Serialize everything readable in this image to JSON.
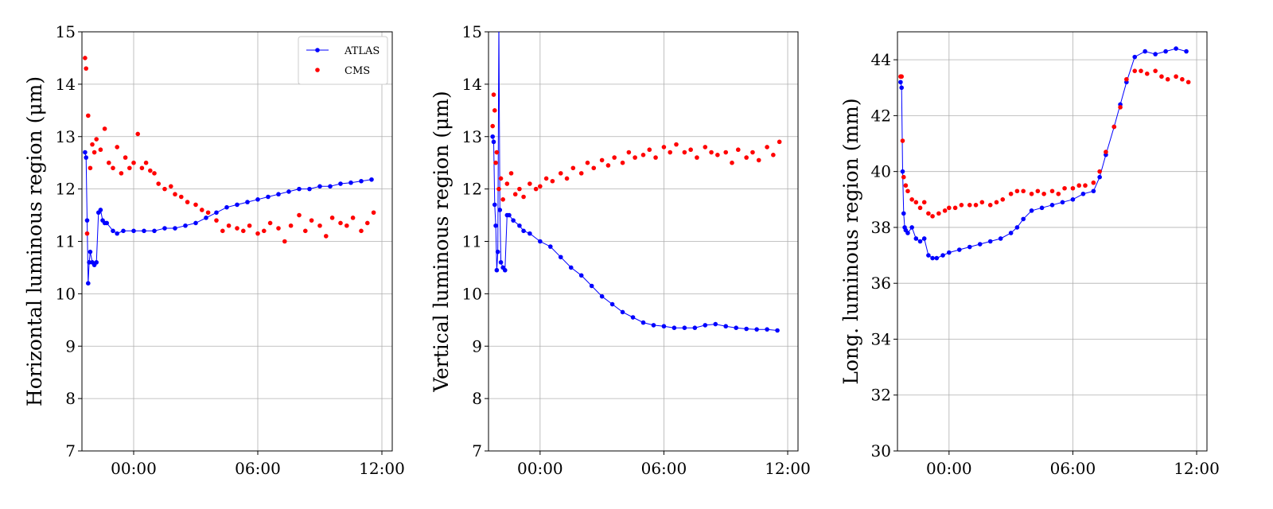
{
  "chart_data": [
    {
      "type": "scatter",
      "title": "",
      "xlabel": "",
      "ylabel": "Horizontal luminous region (μm)",
      "x_unit": "hours",
      "xlim": [
        -2.5,
        12.5
      ],
      "ylim": [
        7,
        15
      ],
      "x_ticks": [
        0,
        6,
        12
      ],
      "x_tick_labels": [
        "00:00",
        "06:00",
        "12:00"
      ],
      "y_ticks": [
        7,
        8,
        9,
        10,
        11,
        12,
        13,
        14,
        15
      ],
      "y_tick_labels": [
        "7",
        "8",
        "9",
        "10",
        "11",
        "12",
        "13",
        "14",
        "15"
      ],
      "grid": true,
      "legend": {
        "position": "top-right",
        "entries": [
          "ATLAS",
          "CMS"
        ]
      },
      "series": [
        {
          "name": "ATLAS",
          "style": "line-marker",
          "color": "#0000ff",
          "x": [
            -2.35,
            -2.3,
            -2.25,
            -2.2,
            -2.15,
            -2.1,
            -2.0,
            -1.9,
            -1.8,
            -1.7,
            -1.6,
            -1.5,
            -1.4,
            -1.3,
            -1.0,
            -0.8,
            -0.5,
            0,
            0.5,
            1.0,
            1.5,
            2.0,
            2.5,
            3.0,
            3.5,
            4.0,
            4.5,
            5.0,
            5.5,
            6.0,
            6.5,
            7.0,
            7.5,
            8.0,
            8.5,
            9.0,
            9.5,
            10.0,
            10.5,
            11.0,
            11.5
          ],
          "y": [
            12.7,
            12.6,
            11.4,
            10.2,
            10.6,
            10.8,
            10.6,
            10.55,
            10.6,
            11.55,
            11.6,
            11.4,
            11.35,
            11.35,
            11.2,
            11.15,
            11.2,
            11.2,
            11.2,
            11.2,
            11.25,
            11.25,
            11.3,
            11.35,
            11.45,
            11.55,
            11.65,
            11.7,
            11.75,
            11.8,
            11.85,
            11.9,
            11.95,
            12.0,
            12.0,
            12.05,
            12.05,
            12.1,
            12.12,
            12.15,
            12.18
          ]
        },
        {
          "name": "CMS",
          "style": "marker",
          "color": "#ff0000",
          "x": [
            -2.35,
            -2.3,
            -2.25,
            -2.2,
            -2.1,
            -2.0,
            -1.9,
            -1.8,
            -1.6,
            -1.4,
            -1.2,
            -1.0,
            -0.8,
            -0.6,
            -0.4,
            -0.2,
            0,
            0.2,
            0.4,
            0.6,
            0.8,
            1.0,
            1.2,
            1.5,
            1.8,
            2.0,
            2.3,
            2.6,
            3.0,
            3.3,
            3.6,
            4.0,
            4.3,
            4.6,
            5.0,
            5.3,
            5.6,
            6.0,
            6.3,
            6.6,
            7.0,
            7.3,
            7.6,
            8.0,
            8.3,
            8.6,
            9.0,
            9.3,
            9.6,
            10.0,
            10.3,
            10.6,
            11.0,
            11.3,
            11.6
          ],
          "y": [
            14.5,
            14.3,
            11.15,
            13.4,
            12.4,
            12.85,
            12.7,
            12.95,
            12.75,
            13.15,
            12.5,
            12.4,
            12.8,
            12.3,
            12.6,
            12.4,
            12.5,
            13.05,
            12.4,
            12.5,
            12.35,
            12.3,
            12.1,
            12.0,
            12.05,
            11.9,
            11.85,
            11.75,
            11.7,
            11.6,
            11.55,
            11.4,
            11.2,
            11.3,
            11.25,
            11.2,
            11.3,
            11.15,
            11.2,
            11.35,
            11.25,
            11.0,
            11.3,
            11.5,
            11.2,
            11.4,
            11.3,
            11.1,
            11.45,
            11.35,
            11.3,
            11.45,
            11.2,
            11.35,
            11.55
          ]
        }
      ]
    },
    {
      "type": "scatter",
      "title": "",
      "xlabel": "",
      "ylabel": "Vertical luminous region (μm)",
      "x_unit": "hours",
      "xlim": [
        -2.5,
        12.5
      ],
      "ylim": [
        7,
        15
      ],
      "x_ticks": [
        0,
        6,
        12
      ],
      "x_tick_labels": [
        "00:00",
        "06:00",
        "12:00"
      ],
      "y_ticks": [
        7,
        8,
        9,
        10,
        11,
        12,
        13,
        14,
        15
      ],
      "y_tick_labels": [
        "7",
        "8",
        "9",
        "10",
        "11",
        "12",
        "13",
        "14",
        "15"
      ],
      "grid": true,
      "series": [
        {
          "name": "ATLAS",
          "style": "line-marker",
          "color": "#0000ff",
          "x": [
            -2.3,
            -2.25,
            -2.2,
            -2.15,
            -2.1,
            -2.05,
            -2.0,
            -1.95,
            -1.9,
            -1.8,
            -1.7,
            -1.6,
            -1.5,
            -1.3,
            -1.0,
            -0.8,
            -0.5,
            0,
            0.5,
            1.0,
            1.5,
            2.0,
            2.5,
            3.0,
            3.5,
            4.0,
            4.5,
            5.0,
            5.5,
            6.0,
            6.5,
            7.0,
            7.5,
            8.0,
            8.5,
            9.0,
            9.5,
            10.0,
            10.5,
            11.0,
            11.5
          ],
          "y": [
            13.0,
            12.9,
            11.7,
            11.3,
            10.45,
            10.8,
            15.2,
            11.6,
            10.6,
            10.5,
            10.45,
            11.5,
            11.5,
            11.4,
            11.3,
            11.2,
            11.15,
            11.0,
            10.9,
            10.7,
            10.5,
            10.35,
            10.15,
            9.95,
            9.8,
            9.65,
            9.55,
            9.45,
            9.4,
            9.38,
            9.35,
            9.35,
            9.35,
            9.4,
            9.42,
            9.38,
            9.35,
            9.33,
            9.32,
            9.32,
            9.3
          ]
        },
        {
          "name": "CMS",
          "style": "marker",
          "color": "#ff0000",
          "x": [
            -2.3,
            -2.25,
            -2.2,
            -2.15,
            -2.1,
            -2.0,
            -1.9,
            -1.8,
            -1.6,
            -1.4,
            -1.2,
            -1.0,
            -0.8,
            -0.5,
            -0.2,
            0,
            0.3,
            0.6,
            1.0,
            1.3,
            1.6,
            2.0,
            2.3,
            2.6,
            3.0,
            3.3,
            3.6,
            4.0,
            4.3,
            4.6,
            5.0,
            5.3,
            5.6,
            6.0,
            6.3,
            6.6,
            7.0,
            7.3,
            7.6,
            8.0,
            8.3,
            8.6,
            9.0,
            9.3,
            9.6,
            10.0,
            10.3,
            10.6,
            11.0,
            11.3,
            11.6
          ],
          "y": [
            13.2,
            13.8,
            13.5,
            12.5,
            12.7,
            12.0,
            12.2,
            11.8,
            12.1,
            12.3,
            11.9,
            12.0,
            11.85,
            12.1,
            12.0,
            12.05,
            12.2,
            12.15,
            12.3,
            12.2,
            12.4,
            12.3,
            12.5,
            12.4,
            12.55,
            12.45,
            12.6,
            12.5,
            12.7,
            12.6,
            12.65,
            12.75,
            12.6,
            12.8,
            12.7,
            12.85,
            12.7,
            12.75,
            12.6,
            12.8,
            12.7,
            12.65,
            12.7,
            12.5,
            12.75,
            12.6,
            12.7,
            12.55,
            12.8,
            12.65,
            12.9
          ]
        }
      ]
    },
    {
      "type": "scatter",
      "title": "",
      "xlabel": "",
      "ylabel": "Long. luminous region (mm)",
      "x_unit": "hours",
      "xlim": [
        -2.5,
        12.5
      ],
      "ylim": [
        30,
        45
      ],
      "x_ticks": [
        0,
        6,
        12
      ],
      "x_tick_labels": [
        "00:00",
        "06:00",
        "12:00"
      ],
      "y_ticks": [
        30,
        32,
        34,
        36,
        38,
        40,
        42,
        44
      ],
      "y_tick_labels": [
        "30",
        "32",
        "34",
        "36",
        "38",
        "40",
        "42",
        "44"
      ],
      "grid": true,
      "series": [
        {
          "name": "ATLAS",
          "style": "line-marker",
          "color": "#0000ff",
          "x": [
            -2.35,
            -2.3,
            -2.25,
            -2.2,
            -2.15,
            -2.1,
            -2.0,
            -1.8,
            -1.6,
            -1.4,
            -1.2,
            -1.0,
            -0.8,
            -0.6,
            -0.3,
            0,
            0.5,
            1.0,
            1.5,
            2.0,
            2.5,
            3.0,
            3.3,
            3.6,
            4.0,
            4.5,
            5.0,
            5.5,
            6.0,
            6.5,
            7.0,
            7.3,
            7.6,
            8.0,
            8.3,
            8.6,
            9.0,
            9.5,
            10.0,
            10.5,
            11.0,
            11.5
          ],
          "y": [
            43.2,
            43.0,
            40.0,
            38.5,
            38.0,
            37.9,
            37.8,
            38.0,
            37.6,
            37.5,
            37.6,
            37.0,
            36.9,
            36.9,
            37.0,
            37.1,
            37.2,
            37.3,
            37.4,
            37.5,
            37.6,
            37.8,
            38.0,
            38.3,
            38.6,
            38.7,
            38.8,
            38.9,
            39.0,
            39.2,
            39.3,
            39.8,
            40.6,
            41.6,
            42.4,
            43.2,
            44.1,
            44.3,
            44.2,
            44.3,
            44.4,
            44.3
          ]
        },
        {
          "name": "CMS",
          "style": "marker",
          "color": "#ff0000",
          "x": [
            -2.35,
            -2.3,
            -2.25,
            -2.2,
            -2.1,
            -2.0,
            -1.8,
            -1.6,
            -1.4,
            -1.2,
            -1.0,
            -0.8,
            -0.5,
            -0.2,
            0,
            0.3,
            0.6,
            1.0,
            1.3,
            1.6,
            2.0,
            2.3,
            2.6,
            3.0,
            3.3,
            3.6,
            4.0,
            4.3,
            4.6,
            5.0,
            5.3,
            5.6,
            6.0,
            6.3,
            6.6,
            7.0,
            7.3,
            7.6,
            8.0,
            8.3,
            8.6,
            9.0,
            9.3,
            9.6,
            10.0,
            10.3,
            10.6,
            11.0,
            11.3,
            11.6
          ],
          "y": [
            43.4,
            43.4,
            41.1,
            39.8,
            39.5,
            39.3,
            39.0,
            38.9,
            38.7,
            38.9,
            38.5,
            38.4,
            38.5,
            38.6,
            38.7,
            38.7,
            38.8,
            38.8,
            38.8,
            38.9,
            38.8,
            38.9,
            39.0,
            39.2,
            39.3,
            39.3,
            39.2,
            39.3,
            39.2,
            39.3,
            39.2,
            39.4,
            39.4,
            39.5,
            39.5,
            39.6,
            40.0,
            40.7,
            41.6,
            42.3,
            43.3,
            43.6,
            43.6,
            43.5,
            43.6,
            43.4,
            43.3,
            43.4,
            43.3,
            43.2
          ]
        }
      ]
    }
  ]
}
